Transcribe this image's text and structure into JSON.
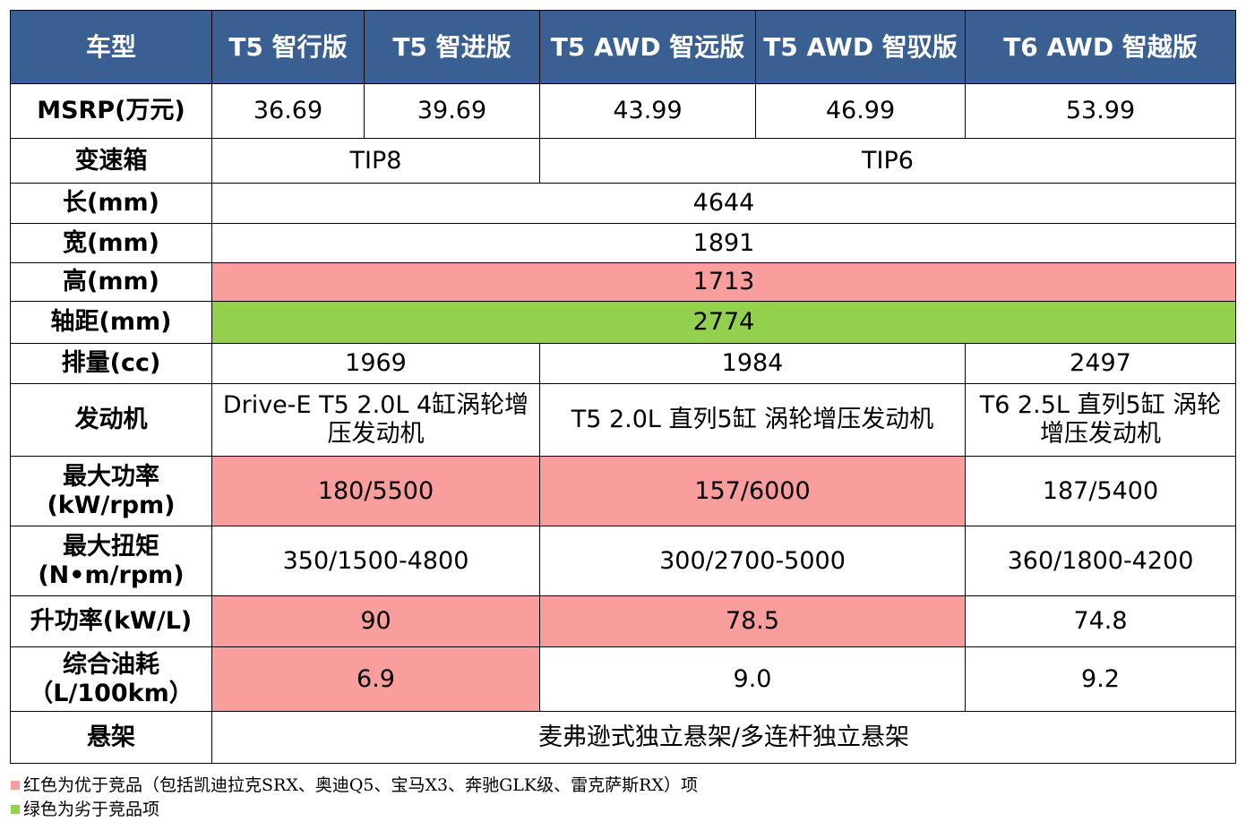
{
  "header": [
    "车型",
    "T5 智行版",
    "T5 智进版",
    "T5 AWD 智远版",
    "T5 AWD 智驭版",
    "T6 AWD 智越版"
  ],
  "rows": {
    "msrp": {
      "label": "MSRP(万元)",
      "v1": "36.69",
      "v2": "39.69",
      "v3": "43.99",
      "v4": "46.99",
      "v5": "53.99"
    },
    "gearbox": {
      "label": "变速箱",
      "v12": "TIP8",
      "v35": "TIP6"
    },
    "length": {
      "label": "长(mm)",
      "v": "4644"
    },
    "width": {
      "label": "宽(mm)",
      "v": "1891"
    },
    "height": {
      "label": "高(mm)",
      "v": "1713"
    },
    "wheelbase": {
      "label": "轴距(mm)",
      "v": "2774"
    },
    "displacement": {
      "label": "排量(cc)",
      "v12": "1969",
      "v34": "1984",
      "v5": "2497"
    },
    "engine": {
      "label": "发动机",
      "v12": "Drive-E T5 2.0L 4缸涡轮增压发动机",
      "v34": "T5 2.0L 直列5缸 涡轮增压发动机",
      "v5": "T6 2.5L 直列5缸 涡轮增压发动机"
    },
    "power": {
      "label": "最大功率(kW/rpm)",
      "v12": "180/5500",
      "v34": "157/6000",
      "v5": "187/5400"
    },
    "torque": {
      "label": "最大扭矩(N•m/rpm)",
      "v12": "350/1500-4800",
      "v34": "300/2700-5000",
      "v5": "360/1800-4200"
    },
    "specific_power": {
      "label": "升功率(kW/L)",
      "v12": "90",
      "v34": "78.5",
      "v5": "74.8"
    },
    "fuel": {
      "label": "综合油耗（L/100km）",
      "v12": "6.9",
      "v34": "9.0",
      "v5": "9.2"
    },
    "suspension": {
      "label": "悬架",
      "v": "麦弗逊式独立悬架/多连杆独立悬架"
    }
  },
  "legend": {
    "red_text": "红色为优于竞品（包括凯迪拉克SRX、奥迪Q5、宝马X3、奔驰GLK级、雷克萨斯RX）项",
    "green_text": "绿色为劣于竞品项"
  },
  "colors": {
    "header_bg": "#3a5f92",
    "better": "#fa9d9d",
    "worse": "#92d04e"
  }
}
